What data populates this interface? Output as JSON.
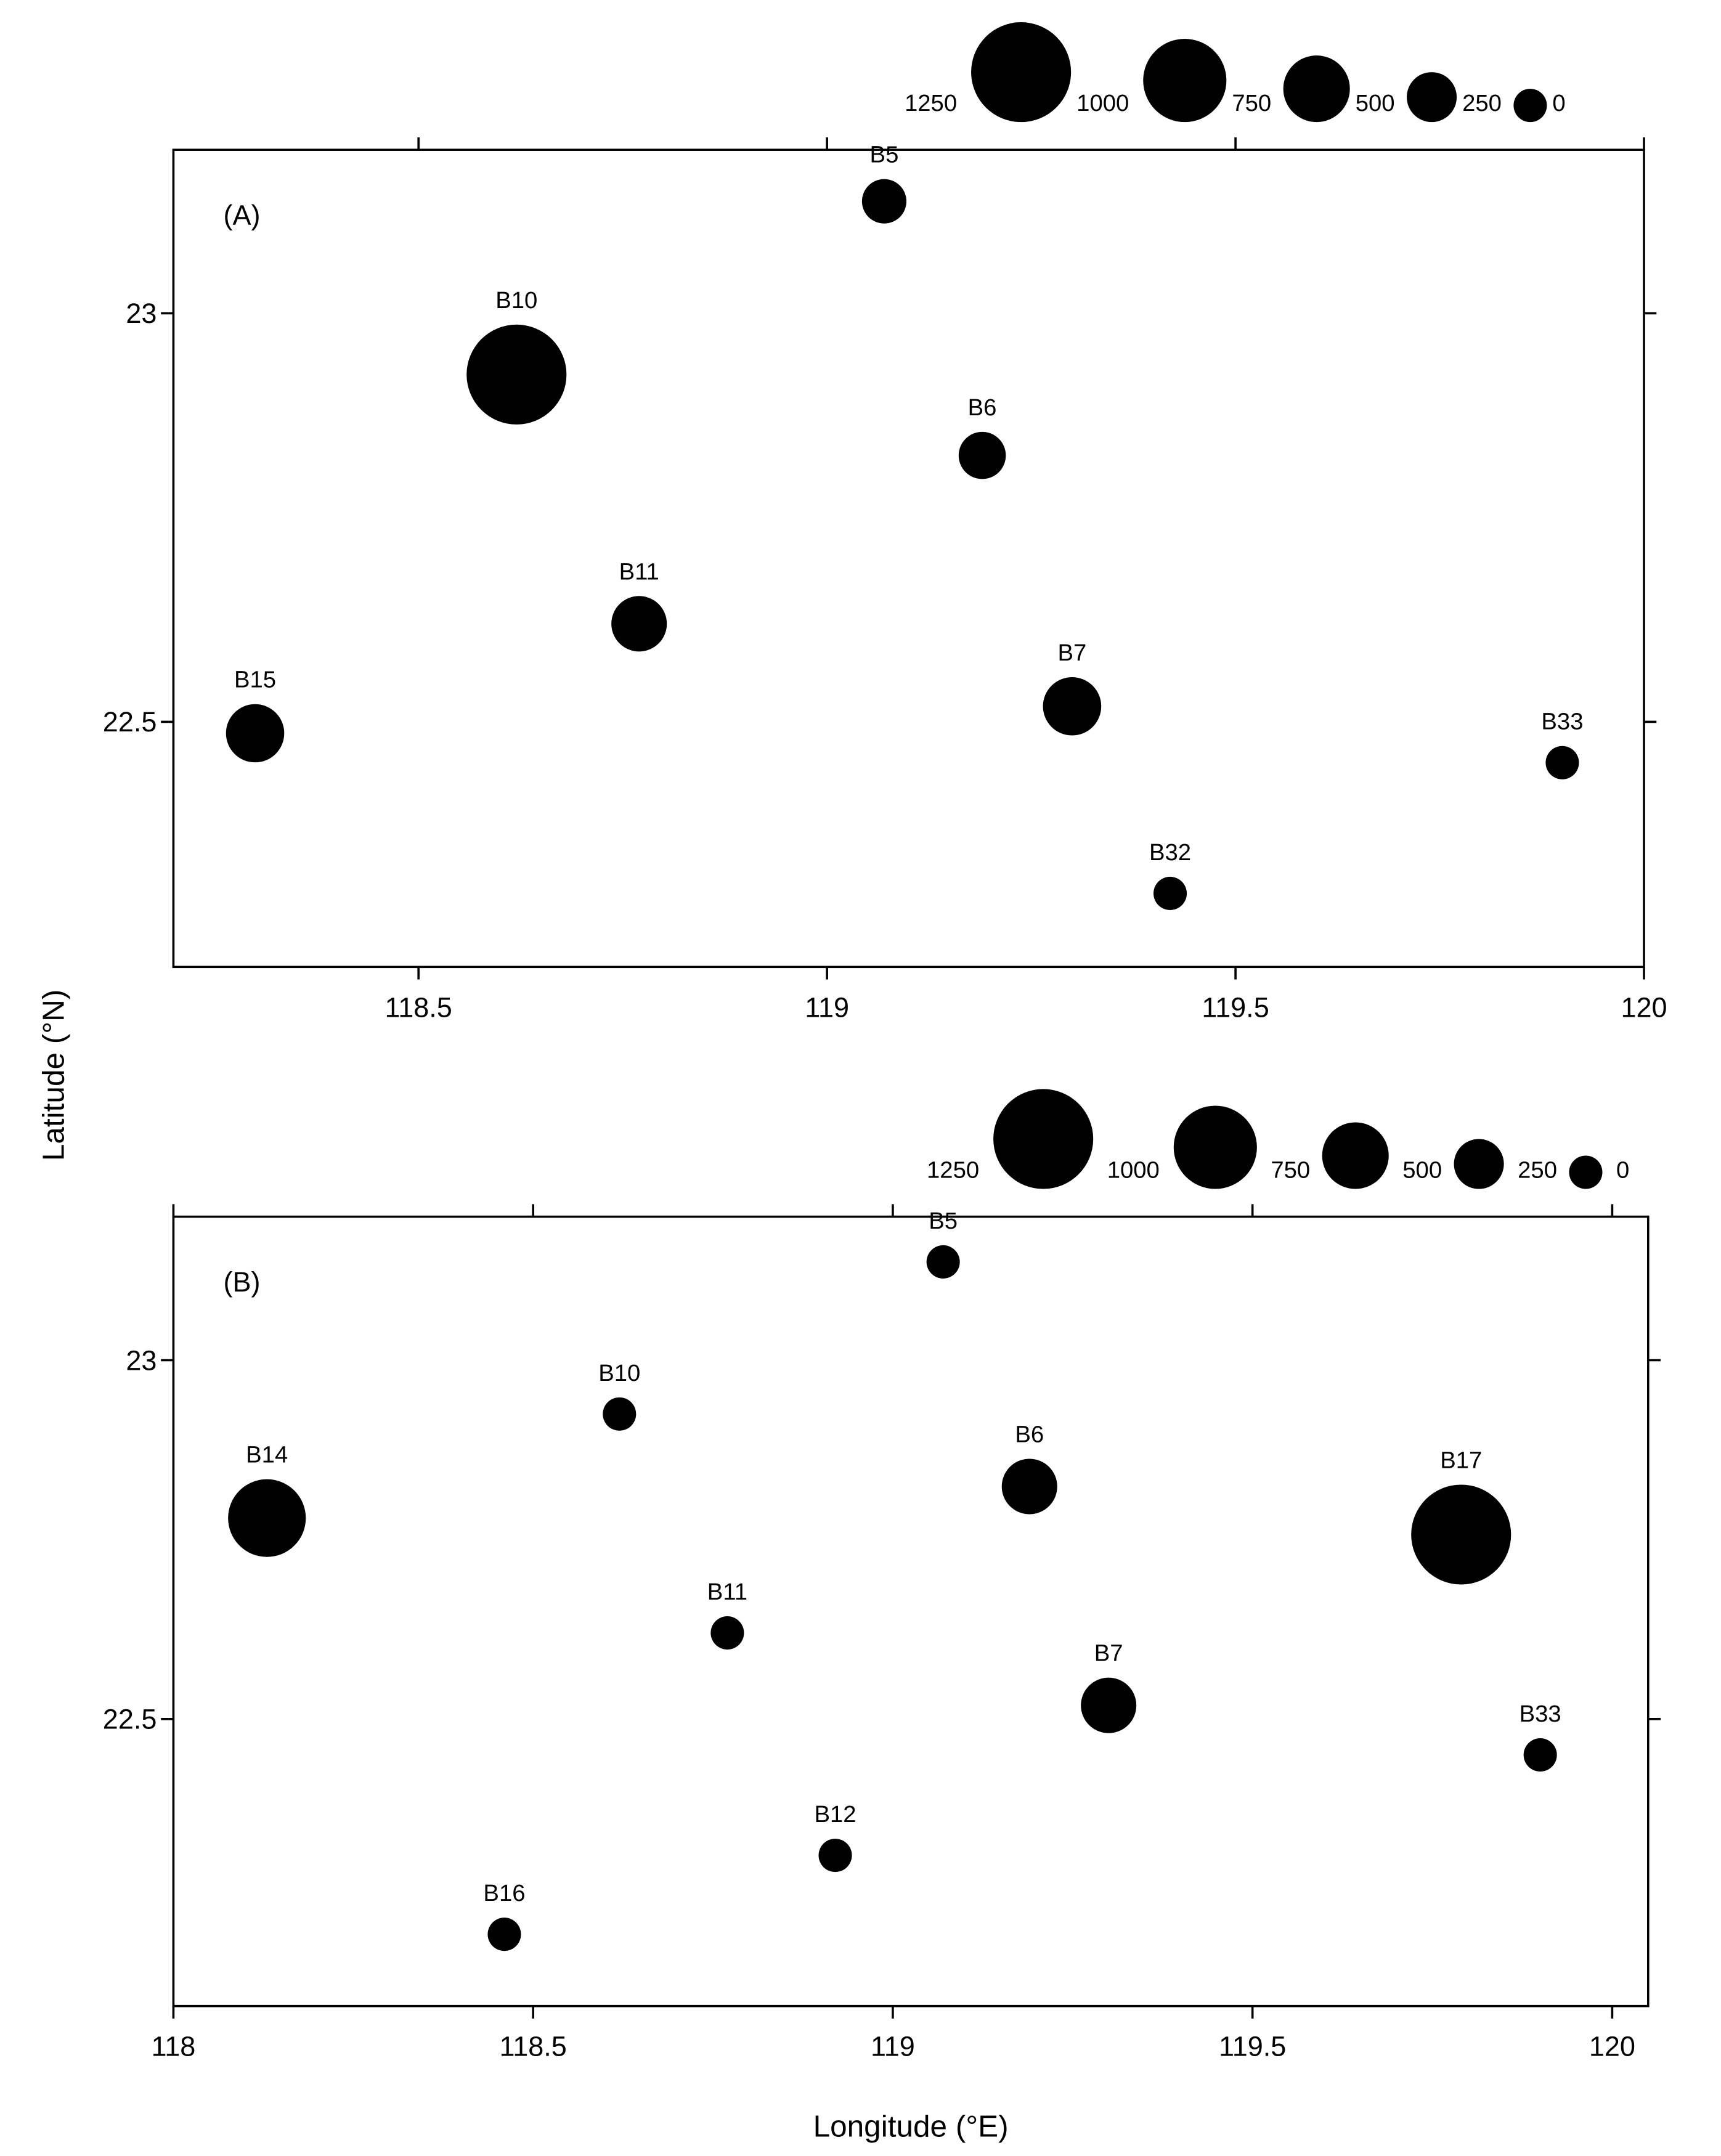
{
  "chart_data": [
    {
      "type": "scatter",
      "panel_label": "(A)",
      "names": [
        "B5",
        "B10",
        "B6",
        "B11",
        "B7",
        "B15",
        "B33",
        "B32"
      ],
      "x": [
        119.07,
        118.62,
        119.19,
        118.77,
        119.3,
        118.3,
        119.9,
        119.42
      ],
      "y": [
        23.137,
        22.925,
        22.826,
        22.62,
        22.519,
        22.486,
        22.45,
        22.29
      ],
      "sizes": [
        417,
        1250,
        458,
        583,
        625,
        625,
        250,
        250
      ],
      "size_legend": [
        1250,
        1000,
        750,
        500,
        250,
        0
      ],
      "color": "#000000",
      "xlim": [
        118.2,
        120
      ],
      "ylim": [
        22.2,
        23.2
      ],
      "xticks": [
        118.5,
        119,
        119.5,
        120
      ],
      "yticks": [
        22.5,
        23
      ]
    },
    {
      "type": "scatter",
      "panel_label": "(B)",
      "names": [
        "B5",
        "B10",
        "B14",
        "B6",
        "B17",
        "B11",
        "B7",
        "B33",
        "B12",
        "B16"
      ],
      "x": [
        119.07,
        118.62,
        118.13,
        119.19,
        119.79,
        118.77,
        119.3,
        119.9,
        118.92,
        118.46
      ],
      "y": [
        23.137,
        22.925,
        22.78,
        22.824,
        22.757,
        22.62,
        22.519,
        22.45,
        22.31,
        22.2
      ],
      "sizes": [
        250,
        250,
        917,
        583,
        1250,
        250,
        583,
        250,
        250,
        250
      ],
      "size_legend": [
        1250,
        1000,
        750,
        500,
        250,
        0
      ],
      "color": "#000000",
      "xlim": [
        118,
        120.05
      ],
      "ylim": [
        22.1,
        23.2
      ],
      "xticks": [
        118,
        118.5,
        119,
        119.5,
        120
      ],
      "yticks": [
        22.5,
        23
      ],
      "xlabel": "Longitude (°E)"
    }
  ],
  "ylabel": "Latitude (°N)"
}
